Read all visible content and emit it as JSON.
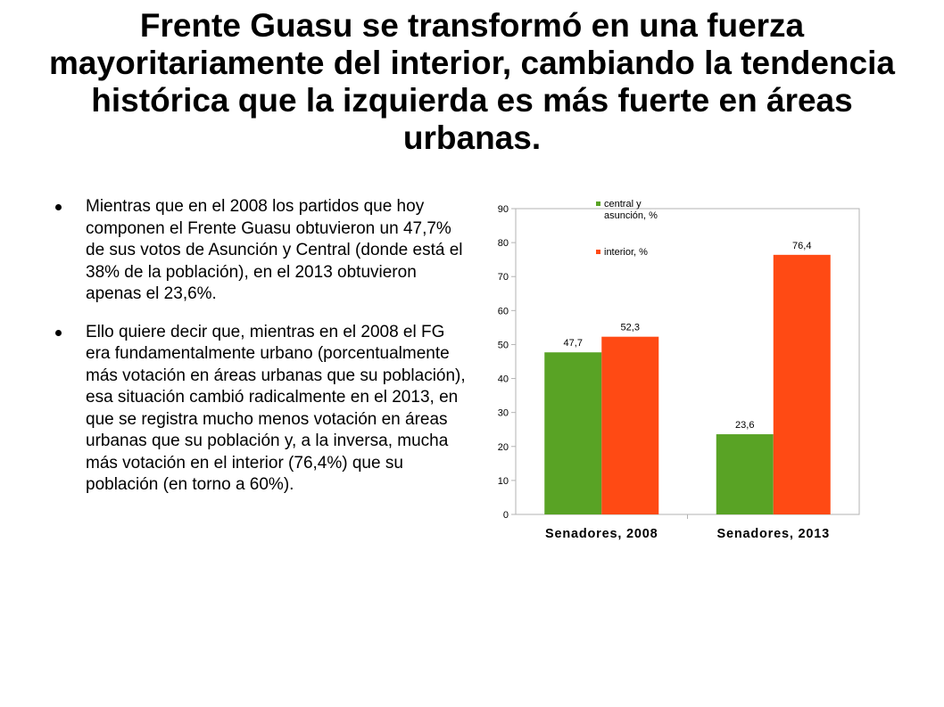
{
  "slide": {
    "title": "Frente Guasu se transformó en una fuerza mayoritariamente del interior, cambiando la tendencia histórica que la izquierda es más fuerte en áreas urbanas.",
    "bullets": [
      "Mientras que en el 2008 los partidos que hoy componen el Frente Guasu obtuvieron un 47,7% de sus votos de Asunción y Central (donde está el 38% de la población), en el 2013 obtuvieron apenas el 23,6%.",
      "Ello quiere decir que, mientras en el 2008 el FG era fundamentalmente urbano (porcentualmente más votación en áreas urbanas que su población), esa situación cambió radicalmente en el 2013, en que se registra mucho menos votación en áreas urbanas que su población y, a la inversa, mucha más votación en el interior (76,4%) que su población (en torno a 60%)."
    ]
  },
  "chart_data": {
    "type": "bar",
    "categories": [
      "Senadores, 2008",
      "Senadores, 2013"
    ],
    "series": [
      {
        "name": "central y asunción, %",
        "name_lines": [
          "central y",
          "asunción, %"
        ],
        "values": [
          47.7,
          23.6
        ],
        "value_labels": [
          "47,7",
          "23,6"
        ],
        "color": "#59A325"
      },
      {
        "name": "interior, %",
        "name_lines": [
          "interior, %"
        ],
        "values": [
          52.3,
          76.4
        ],
        "value_labels": [
          "52,3",
          "76,4"
        ],
        "color": "#FF4A14"
      }
    ],
    "ylim": [
      0,
      90
    ],
    "yticks": [
      0,
      10,
      20,
      30,
      40,
      50,
      60,
      70,
      80,
      90
    ],
    "title": "",
    "xlabel": "",
    "ylabel": "",
    "grid": false,
    "legend_position": "top-left inside plot"
  }
}
